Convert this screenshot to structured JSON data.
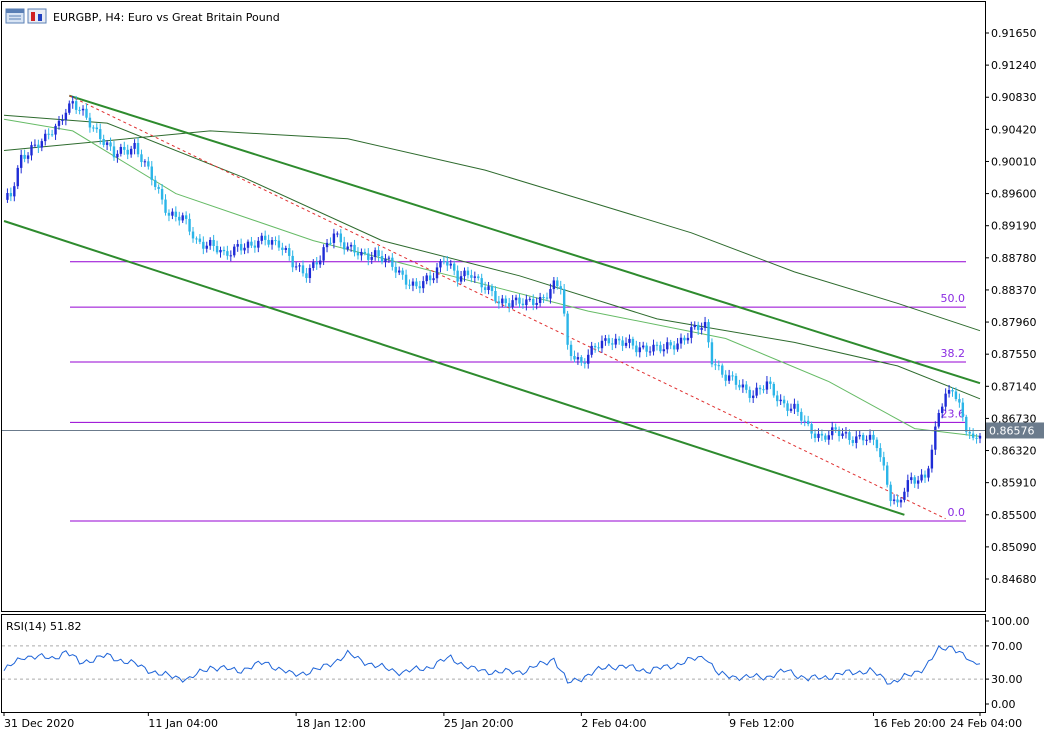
{
  "header": {
    "symbol_text": "EURGBP, H4:  Euro vs Great Britain Pound",
    "icon_names": [
      "chart-window-icon",
      "chart-type-icon"
    ]
  },
  "rsi": {
    "label": "RSI(14) 51.82",
    "levels": [
      "100.00",
      "70.00",
      "30.00",
      "0.00"
    ]
  },
  "colors": {
    "bull": "#1e2cd6",
    "bear": "#2bb5e8",
    "ma_dark": "#2e6b2e",
    "ma_light": "#66bb66",
    "channel": "#2e8b2e",
    "fib": "#9400d3",
    "dashed": "#e03030",
    "rsi_line": "#1e64d8",
    "price_tag_bg": "#6b7b8c"
  },
  "chart_data": {
    "type": "candlestick",
    "symbol": "EURGBP",
    "timeframe": "H4",
    "current_price": "0.86576",
    "price_axis_labels": [
      "0.91650",
      "0.91240",
      "0.90830",
      "0.90420",
      "0.90010",
      "0.89600",
      "0.89190",
      "0.88780",
      "0.88370",
      "0.87960",
      "0.87550",
      "0.87140",
      "0.86730",
      "0.86320",
      "0.85910",
      "0.85500",
      "0.85090",
      "0.84680"
    ],
    "time_axis_labels": [
      "31 Dec 2020",
      "11 Jan 04:00",
      "18 Jan 12:00",
      "25 Jan 20:00",
      "2 Feb 04:00",
      "9 Feb 12:00",
      "16 Feb 20:00",
      "24 Feb 04:00"
    ],
    "fib_levels": [
      {
        "label": "",
        "price": 0.8873
      },
      {
        "label": "50.0",
        "price": 0.8815
      },
      {
        "label": "38.2",
        "price": 0.8745
      },
      {
        "label": "23.6",
        "price": 0.8668
      },
      {
        "label": "0.0",
        "price": 0.8542
      }
    ],
    "close_path": [
      {
        "t": 0,
        "p": 0.8952
      },
      {
        "t": 2,
        "p": 0.8955
      },
      {
        "t": 5,
        "p": 0.9005
      },
      {
        "t": 8,
        "p": 0.902
      },
      {
        "t": 12,
        "p": 0.9028
      },
      {
        "t": 16,
        "p": 0.905
      },
      {
        "t": 18,
        "p": 0.907
      },
      {
        "t": 20,
        "p": 0.9075
      },
      {
        "t": 24,
        "p": 0.9055
      },
      {
        "t": 28,
        "p": 0.9035
      },
      {
        "t": 32,
        "p": 0.9008
      },
      {
        "t": 38,
        "p": 0.9022
      },
      {
        "t": 40,
        "p": 0.9005
      },
      {
        "t": 44,
        "p": 0.897
      },
      {
        "t": 48,
        "p": 0.8935
      },
      {
        "t": 52,
        "p": 0.8927
      },
      {
        "t": 56,
        "p": 0.89
      },
      {
        "t": 60,
        "p": 0.8895
      },
      {
        "t": 64,
        "p": 0.888
      },
      {
        "t": 68,
        "p": 0.8895
      },
      {
        "t": 72,
        "p": 0.889
      },
      {
        "t": 76,
        "p": 0.8905
      },
      {
        "t": 80,
        "p": 0.8895
      },
      {
        "t": 84,
        "p": 0.887
      },
      {
        "t": 88,
        "p": 0.886
      },
      {
        "t": 92,
        "p": 0.8875
      },
      {
        "t": 96,
        "p": 0.8912
      },
      {
        "t": 100,
        "p": 0.889
      },
      {
        "t": 104,
        "p": 0.888
      },
      {
        "t": 108,
        "p": 0.8885
      },
      {
        "t": 112,
        "p": 0.887
      },
      {
        "t": 116,
        "p": 0.8855
      },
      {
        "t": 120,
        "p": 0.884
      },
      {
        "t": 124,
        "p": 0.885
      },
      {
        "t": 128,
        "p": 0.888
      },
      {
        "t": 132,
        "p": 0.885
      },
      {
        "t": 136,
        "p": 0.886
      },
      {
        "t": 140,
        "p": 0.884
      },
      {
        "t": 144,
        "p": 0.882
      },
      {
        "t": 148,
        "p": 0.8825
      },
      {
        "t": 152,
        "p": 0.8818
      },
      {
        "t": 156,
        "p": 0.8825
      },
      {
        "t": 160,
        "p": 0.8843
      },
      {
        "t": 162,
        "p": 0.884
      },
      {
        "t": 164,
        "p": 0.8762
      },
      {
        "t": 168,
        "p": 0.8745
      },
      {
        "t": 172,
        "p": 0.8762
      },
      {
        "t": 176,
        "p": 0.8775
      },
      {
        "t": 180,
        "p": 0.877
      },
      {
        "t": 184,
        "p": 0.8762
      },
      {
        "t": 188,
        "p": 0.8765
      },
      {
        "t": 192,
        "p": 0.876
      },
      {
        "t": 196,
        "p": 0.877
      },
      {
        "t": 200,
        "p": 0.8785
      },
      {
        "t": 204,
        "p": 0.879
      },
      {
        "t": 206,
        "p": 0.875
      },
      {
        "t": 210,
        "p": 0.8725
      },
      {
        "t": 214,
        "p": 0.8715
      },
      {
        "t": 218,
        "p": 0.8705
      },
      {
        "t": 222,
        "p": 0.8715
      },
      {
        "t": 226,
        "p": 0.8695
      },
      {
        "t": 230,
        "p": 0.8685
      },
      {
        "t": 234,
        "p": 0.866
      },
      {
        "t": 238,
        "p": 0.865
      },
      {
        "t": 242,
        "p": 0.8655
      },
      {
        "t": 246,
        "p": 0.865
      },
      {
        "t": 250,
        "p": 0.8648
      },
      {
        "t": 254,
        "p": 0.864
      },
      {
        "t": 256,
        "p": 0.861
      },
      {
        "t": 258,
        "p": 0.8575
      },
      {
        "t": 260,
        "p": 0.856
      },
      {
        "t": 262,
        "p": 0.858
      },
      {
        "t": 264,
        "p": 0.8595
      },
      {
        "t": 268,
        "p": 0.86
      },
      {
        "t": 270,
        "p": 0.863
      },
      {
        "t": 272,
        "p": 0.868
      },
      {
        "t": 274,
        "p": 0.87
      },
      {
        "t": 276,
        "p": 0.8715
      },
      {
        "t": 278,
        "p": 0.869
      },
      {
        "t": 280,
        "p": 0.866
      },
      {
        "t": 282,
        "p": 0.864
      },
      {
        "t": 284,
        "p": 0.8655
      }
    ],
    "rsi_path": [
      {
        "t": 0,
        "v": 40
      },
      {
        "t": 6,
        "v": 58
      },
      {
        "t": 14,
        "v": 55
      },
      {
        "t": 18,
        "v": 63
      },
      {
        "t": 22,
        "v": 50
      },
      {
        "t": 30,
        "v": 58
      },
      {
        "t": 38,
        "v": 48
      },
      {
        "t": 46,
        "v": 35
      },
      {
        "t": 54,
        "v": 30
      },
      {
        "t": 60,
        "v": 45
      },
      {
        "t": 68,
        "v": 40
      },
      {
        "t": 76,
        "v": 50
      },
      {
        "t": 84,
        "v": 35
      },
      {
        "t": 92,
        "v": 42
      },
      {
        "t": 100,
        "v": 60
      },
      {
        "t": 108,
        "v": 46
      },
      {
        "t": 116,
        "v": 38
      },
      {
        "t": 124,
        "v": 45
      },
      {
        "t": 130,
        "v": 56
      },
      {
        "t": 136,
        "v": 42
      },
      {
        "t": 144,
        "v": 38
      },
      {
        "t": 152,
        "v": 40
      },
      {
        "t": 160,
        "v": 55
      },
      {
        "t": 164,
        "v": 25
      },
      {
        "t": 170,
        "v": 35
      },
      {
        "t": 176,
        "v": 46
      },
      {
        "t": 182,
        "v": 44
      },
      {
        "t": 188,
        "v": 40
      },
      {
        "t": 196,
        "v": 48
      },
      {
        "t": 204,
        "v": 58
      },
      {
        "t": 208,
        "v": 35
      },
      {
        "t": 216,
        "v": 32
      },
      {
        "t": 222,
        "v": 33
      },
      {
        "t": 228,
        "v": 40
      },
      {
        "t": 234,
        "v": 30
      },
      {
        "t": 240,
        "v": 33
      },
      {
        "t": 246,
        "v": 38
      },
      {
        "t": 252,
        "v": 40
      },
      {
        "t": 258,
        "v": 26
      },
      {
        "t": 264,
        "v": 35
      },
      {
        "t": 268,
        "v": 45
      },
      {
        "t": 272,
        "v": 65
      },
      {
        "t": 276,
        "v": 70
      },
      {
        "t": 280,
        "v": 55
      },
      {
        "t": 282,
        "v": 47
      },
      {
        "t": 284,
        "v": 52
      }
    ],
    "ma_slow_path": [
      {
        "t": 0,
        "p": 0.9015
      },
      {
        "t": 60,
        "p": 0.904
      },
      {
        "t": 100,
        "p": 0.903
      },
      {
        "t": 140,
        "p": 0.899
      },
      {
        "t": 170,
        "p": 0.895
      },
      {
        "t": 200,
        "p": 0.891
      },
      {
        "t": 230,
        "p": 0.886
      },
      {
        "t": 260,
        "p": 0.882
      },
      {
        "t": 284,
        "p": 0.8785
      }
    ],
    "ma_mid_path": [
      {
        "t": 0,
        "p": 0.906
      },
      {
        "t": 30,
        "p": 0.905
      },
      {
        "t": 70,
        "p": 0.898
      },
      {
        "t": 110,
        "p": 0.89
      },
      {
        "t": 150,
        "p": 0.8855
      },
      {
        "t": 190,
        "p": 0.88
      },
      {
        "t": 230,
        "p": 0.877
      },
      {
        "t": 260,
        "p": 0.874
      },
      {
        "t": 284,
        "p": 0.8698
      }
    ],
    "ma_fast_path": [
      {
        "t": 0,
        "p": 0.9055
      },
      {
        "t": 20,
        "p": 0.904
      },
      {
        "t": 50,
        "p": 0.896
      },
      {
        "t": 90,
        "p": 0.89
      },
      {
        "t": 130,
        "p": 0.8855
      },
      {
        "t": 170,
        "p": 0.881
      },
      {
        "t": 210,
        "p": 0.8775
      },
      {
        "t": 240,
        "p": 0.872
      },
      {
        "t": 265,
        "p": 0.866
      },
      {
        "t": 284,
        "p": 0.865
      }
    ],
    "channel_upper": [
      {
        "t": 19,
        "p": 0.9085
      },
      {
        "t": 284,
        "p": 0.8718
      }
    ],
    "channel_lower": [
      {
        "t": 0,
        "p": 0.8925
      },
      {
        "t": 262,
        "p": 0.855
      }
    ],
    "dashed_trend": [
      {
        "t": 19,
        "p": 0.9085
      },
      {
        "t": 274,
        "p": 0.8545
      }
    ]
  }
}
